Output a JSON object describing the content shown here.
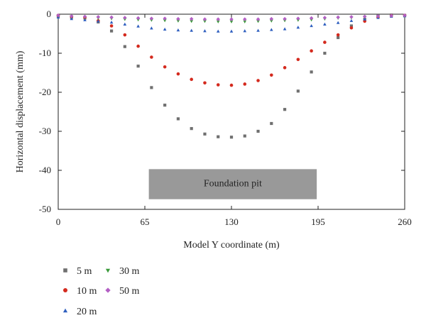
{
  "chart_data": {
    "type": "scatter",
    "title": "",
    "xlabel": "Model Y coordinate (m)",
    "ylabel": "Horizontal displacement (mm)",
    "xlim": [
      0,
      260
    ],
    "ylim": [
      -50,
      0
    ],
    "xticks": [
      0,
      65,
      130,
      195,
      260
    ],
    "yticks": [
      0,
      -10,
      -20,
      -30,
      -40,
      -50
    ],
    "grid": false,
    "legend_position": "bottom-left, two columns",
    "annotation": {
      "text": "Foundation pit",
      "x_range": [
        68,
        194
      ],
      "y_range": [
        -39.7,
        -47.4
      ],
      "fill": "#999999"
    },
    "series": [
      {
        "name": "5 m",
        "marker": "square",
        "color": "#707070",
        "x": [
          0,
          10,
          20,
          30,
          40,
          50,
          60,
          70,
          80,
          90,
          100,
          110,
          120,
          130,
          140,
          150,
          160,
          170,
          180,
          190,
          200,
          210,
          220,
          230,
          240,
          250,
          260
        ],
        "y": [
          -0.5,
          -0.8,
          -1.0,
          -2.0,
          -4.3,
          -8.3,
          -13.3,
          -18.8,
          -23.3,
          -26.8,
          -29.3,
          -30.7,
          -31.4,
          -31.5,
          -31.2,
          -30.0,
          -28.0,
          -24.4,
          -19.7,
          -14.8,
          -10.0,
          -6.0,
          -3.0,
          -1.3,
          -0.5,
          -0.2,
          -0.3
        ]
      },
      {
        "name": "10 m",
        "marker": "circle",
        "color": "#d42a1e",
        "x": [
          0,
          10,
          20,
          30,
          40,
          50,
          60,
          70,
          80,
          90,
          100,
          110,
          120,
          130,
          140,
          150,
          160,
          170,
          180,
          190,
          200,
          210,
          220,
          230,
          240,
          250,
          260
        ],
        "y": [
          -0.3,
          -0.6,
          -0.8,
          -1.7,
          -3.0,
          -5.3,
          -8.2,
          -11.0,
          -13.5,
          -15.3,
          -16.7,
          -17.6,
          -18.1,
          -18.2,
          -17.9,
          -17.0,
          -15.6,
          -13.7,
          -11.6,
          -9.4,
          -7.2,
          -5.3,
          -3.5,
          -1.8,
          -0.8,
          -0.4,
          -0.3
        ]
      },
      {
        "name": "20 m",
        "marker": "triangle-up",
        "color": "#2f5fbf",
        "x": [
          0,
          10,
          20,
          30,
          40,
          50,
          60,
          70,
          80,
          90,
          100,
          110,
          120,
          130,
          140,
          150,
          160,
          170,
          180,
          190,
          200,
          210,
          220,
          230,
          240,
          250,
          260
        ],
        "y": [
          -0.8,
          -1.2,
          -1.5,
          -1.8,
          -2.1,
          -2.6,
          -3.1,
          -3.6,
          -3.9,
          -4.1,
          -4.2,
          -4.3,
          -4.4,
          -4.4,
          -4.3,
          -4.2,
          -4.0,
          -3.8,
          -3.4,
          -3.0,
          -2.6,
          -2.2,
          -1.7,
          -1.3,
          -0.9,
          -0.6,
          -0.5
        ]
      },
      {
        "name": "30 m",
        "marker": "triangle-down",
        "color": "#3a9a3a",
        "x": [
          0,
          10,
          20,
          30,
          40,
          50,
          60,
          70,
          80,
          90,
          100,
          110,
          120,
          130,
          140,
          150,
          160,
          170,
          180,
          190,
          200,
          210,
          220,
          230,
          240,
          250,
          260
        ],
        "y": [
          -0.4,
          -0.6,
          -0.8,
          -1.0,
          -1.1,
          -1.3,
          -1.4,
          -1.5,
          -1.6,
          -1.7,
          -1.8,
          -1.8,
          -1.9,
          -1.9,
          -1.9,
          -1.8,
          -1.7,
          -1.6,
          -1.5,
          -1.4,
          -1.2,
          -1.0,
          -0.9,
          -0.7,
          -0.6,
          -0.5,
          -0.4
        ]
      },
      {
        "name": "50 m",
        "marker": "diamond",
        "color": "#b35fc4",
        "x": [
          0,
          10,
          20,
          30,
          40,
          50,
          60,
          70,
          80,
          90,
          100,
          110,
          120,
          130,
          140,
          150,
          160,
          170,
          180,
          190,
          200,
          210,
          220,
          230,
          240,
          250,
          260
        ],
        "y": [
          -0.3,
          -0.5,
          -0.6,
          -0.7,
          -0.8,
          -0.9,
          -1.0,
          -1.1,
          -1.1,
          -1.2,
          -1.2,
          -1.3,
          -1.3,
          -1.3,
          -1.3,
          -1.3,
          -1.2,
          -1.2,
          -1.1,
          -1.0,
          -0.9,
          -0.8,
          -0.7,
          -0.6,
          -0.5,
          -0.4,
          -0.3
        ]
      }
    ]
  }
}
